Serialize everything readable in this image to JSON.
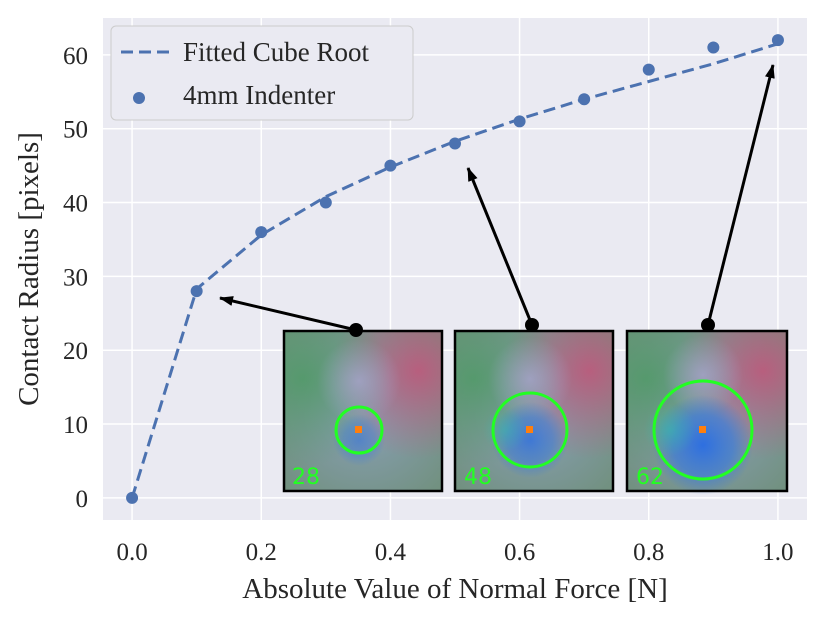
{
  "chart_data": {
    "type": "scatter",
    "xlabel": "Absolute Value of Normal Force [N]",
    "ylabel": "Contact Radius [pixels]",
    "xlim": [
      -0.045,
      1.045
    ],
    "ylim": [
      -3,
      65
    ],
    "xticks": [
      0.0,
      0.2,
      0.4,
      0.6,
      0.8,
      1.0
    ],
    "xtick_labels": [
      "0.0",
      "0.2",
      "0.4",
      "0.6",
      "0.8",
      "1.0"
    ],
    "yticks": [
      0,
      10,
      20,
      30,
      40,
      50,
      60
    ],
    "ytick_labels": [
      "0",
      "10",
      "20",
      "30",
      "40",
      "50",
      "60"
    ],
    "grid": true,
    "legend_position": "top-left",
    "series": [
      {
        "name": "Fitted Cube Root",
        "kind": "line",
        "style": "dashed",
        "color": "#4c72b0",
        "x": [
          0.0,
          0.1,
          0.2,
          0.3,
          0.4,
          0.5,
          0.6,
          0.7,
          0.8,
          0.9,
          1.0
        ],
        "y": [
          0,
          28.3,
          35.6,
          40.8,
          44.8,
          48.3,
          51.3,
          54.0,
          56.4,
          58.8,
          61.5
        ]
      },
      {
        "name": "4mm Indenter",
        "kind": "scatter",
        "color": "#4c72b0",
        "x": [
          0.0,
          0.1,
          0.2,
          0.3,
          0.4,
          0.5,
          0.6,
          0.7,
          0.8,
          0.9,
          1.0
        ],
        "y": [
          0,
          28,
          36,
          40,
          45,
          48,
          51,
          54,
          58,
          61,
          62
        ]
      }
    ],
    "insets": [
      {
        "label": "28",
        "points_to": {
          "x": 0.1,
          "y": 28
        },
        "circle_radius": 28
      },
      {
        "label": "48",
        "points_to": {
          "x": 0.5,
          "y": 48
        },
        "circle_radius": 48
      },
      {
        "label": "62",
        "points_to": {
          "x": 1.0,
          "y": 62
        },
        "circle_radius": 62
      }
    ]
  },
  "colors": {
    "background": "#eaeaf2",
    "grid": "#ffffff",
    "series": "#4c72b0",
    "circle": "#22ff22",
    "center_dot": "#ff7f0e",
    "arrow": "#000000"
  }
}
